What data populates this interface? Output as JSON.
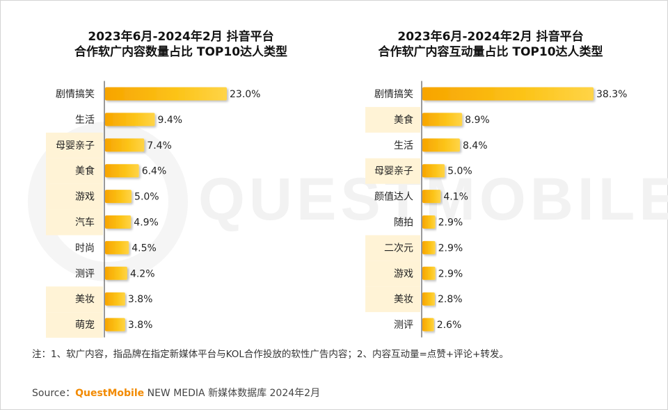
{
  "charts": [
    {
      "title_line1": "2023年6月-2024年2月 抖音平台",
      "title_line2": "合作软广内容数量占比 TOP10达人类型"
    },
    {
      "title_line1": "2023年6月-2024年2月 抖音平台",
      "title_line2": "合作软广内容互动量占比 TOP10达人类型"
    }
  ],
  "chart_data": [
    {
      "type": "bar",
      "orientation": "horizontal",
      "title": "2023年6月-2024年2月 抖音平台 合作软广内容数量占比 TOP10达人类型",
      "categories": [
        "剧情搞笑",
        "生活",
        "母婴亲子",
        "美食",
        "游戏",
        "汽车",
        "时尚",
        "测评",
        "美妆",
        "萌宠"
      ],
      "values": [
        23.0,
        9.4,
        7.4,
        6.4,
        5.0,
        4.9,
        4.5,
        4.2,
        3.8,
        3.8
      ],
      "value_labels": [
        "23.0%",
        "9.4%",
        "7.4%",
        "6.4%",
        "5.0%",
        "4.9%",
        "4.5%",
        "4.2%",
        "3.8%",
        "3.8%"
      ],
      "highlighted": [
        false,
        false,
        true,
        true,
        true,
        true,
        false,
        false,
        true,
        true
      ],
      "bar_color": "#fcc419",
      "highlight_color": "#fff3d6",
      "xlim": [
        0,
        40
      ],
      "grid": false,
      "legend": "none"
    },
    {
      "type": "bar",
      "orientation": "horizontal",
      "title": "2023年6月-2024年2月 抖音平台 合作软广内容互动量占比 TOP10达人类型",
      "categories": [
        "剧情搞笑",
        "美食",
        "生活",
        "母婴亲子",
        "颜值达人",
        "随拍",
        "二次元",
        "游戏",
        "美妆",
        "测评"
      ],
      "values": [
        38.3,
        8.9,
        8.4,
        5.0,
        4.1,
        2.9,
        2.9,
        2.9,
        2.8,
        2.6
      ],
      "value_labels": [
        "38.3%",
        "8.9%",
        "8.4%",
        "5.0%",
        "4.1%",
        "2.9%",
        "2.9%",
        "2.9%",
        "2.8%",
        "2.6%"
      ],
      "highlighted": [
        false,
        true,
        false,
        true,
        false,
        false,
        true,
        true,
        true,
        false
      ],
      "bar_color": "#fcc419",
      "highlight_color": "#fff3d6",
      "xlim": [
        0,
        40
      ],
      "grid": false,
      "legend": "none"
    }
  ],
  "note": "注：1、软广内容，指品牌在指定新媒体平台与KOL合作投放的软性广告内容；2、内容互动量=点赞+评论+转发。",
  "source": {
    "prefix": "Source：",
    "brand": "QuestMobile",
    "suffix": " NEW MEDIA 新媒体数据库 2024年2月"
  },
  "watermark": "QUESTMOBILE"
}
